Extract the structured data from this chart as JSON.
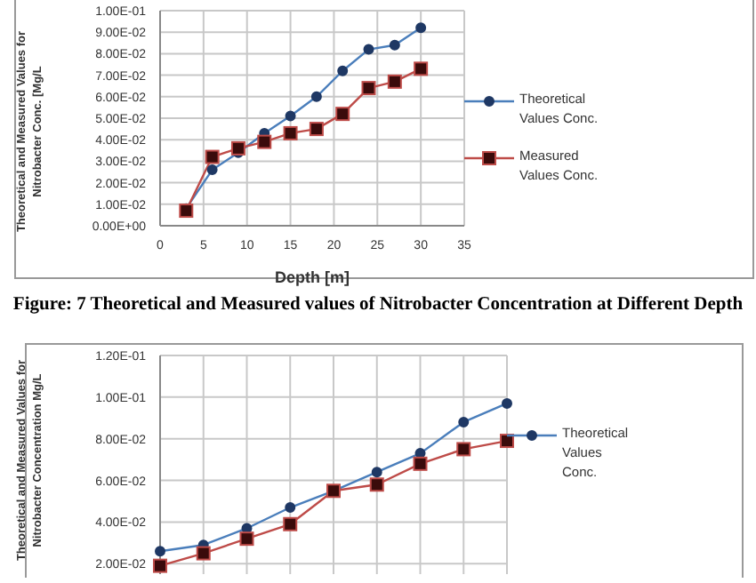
{
  "chart_data": [
    {
      "type": "line",
      "xlabel": "Depth [m]",
      "ylabel": "Theoretical and Measured Values for Nitrobacter Conc. [Mg/L",
      "annotations": [
        "Figure: 7 Theoretical and Measured values of Nitrobacter Concentration at Different Depth"
      ],
      "x": [
        3,
        6,
        9,
        12,
        15,
        18,
        21,
        24,
        27,
        30
      ],
      "series": [
        {
          "name": "Theoretical Values Conc.",
          "color": "#4a7ebb",
          "marker": "circle",
          "values": [
            0.008,
            0.026,
            0.034,
            0.043,
            0.051,
            0.06,
            0.072,
            0.082,
            0.084,
            0.092
          ]
        },
        {
          "name": "Measured Values Conc.",
          "color": "#be4b48",
          "marker": "square",
          "values": [
            0.007,
            0.032,
            0.036,
            0.039,
            0.043,
            0.045,
            0.052,
            0.064,
            0.067,
            0.073
          ]
        }
      ],
      "xlim": [
        0,
        35
      ],
      "xticks": [
        0,
        5,
        10,
        15,
        20,
        25,
        30,
        35
      ],
      "ylim": [
        0,
        0.1
      ],
      "yticks": [
        {
          "value": 0,
          "label": "0.00E+00"
        },
        {
          "value": 0.01,
          "label": "1.00E-02"
        },
        {
          "value": 0.02,
          "label": "2.00E-02"
        },
        {
          "value": 0.03,
          "label": "3.00E-02"
        },
        {
          "value": 0.04,
          "label": "4.00E-02"
        },
        {
          "value": 0.05,
          "label": "5.00E-02"
        },
        {
          "value": 0.06,
          "label": "6.00E-02"
        },
        {
          "value": 0.07,
          "label": "7.00E-02"
        },
        {
          "value": 0.08,
          "label": "8.00E-02"
        },
        {
          "value": 0.09,
          "label": "9.00E-02"
        },
        {
          "value": 0.1,
          "label": "1.00E-01"
        }
      ],
      "grid": true,
      "legend": "right"
    },
    {
      "type": "line",
      "ylabel": "Theoretical and Measured Values for Nitrobacter Concentration Mg/L",
      "categories": [
        null,
        null,
        null,
        null,
        null,
        null,
        null,
        null,
        null
      ],
      "series": [
        {
          "name": "Theoretical Values Conc.",
          "color": "#4a7ebb",
          "marker": "circle",
          "values": [
            0.026,
            0.029,
            0.037,
            0.047,
            0.055,
            0.064,
            0.073,
            0.088,
            0.097
          ]
        },
        {
          "color": "#be4b48",
          "marker": "square",
          "values": [
            0.019,
            0.025,
            0.032,
            0.039,
            0.055,
            0.058,
            0.068,
            0.075,
            0.079
          ]
        }
      ],
      "ylim": [
        0.015,
        0.12
      ],
      "yticks": [
        {
          "value": 0.02,
          "label": "2.00E-02"
        },
        {
          "value": 0.04,
          "label": "4.00E-02"
        },
        {
          "value": 0.06,
          "label": "6.00E-02"
        },
        {
          "value": 0.08,
          "label": "8.00E-02"
        },
        {
          "value": 0.1,
          "label": "1.00E-01"
        },
        {
          "value": 0.12,
          "label": "1.20E-01"
        }
      ],
      "tick_labels": "y",
      "grid": true,
      "legend": "right"
    }
  ]
}
